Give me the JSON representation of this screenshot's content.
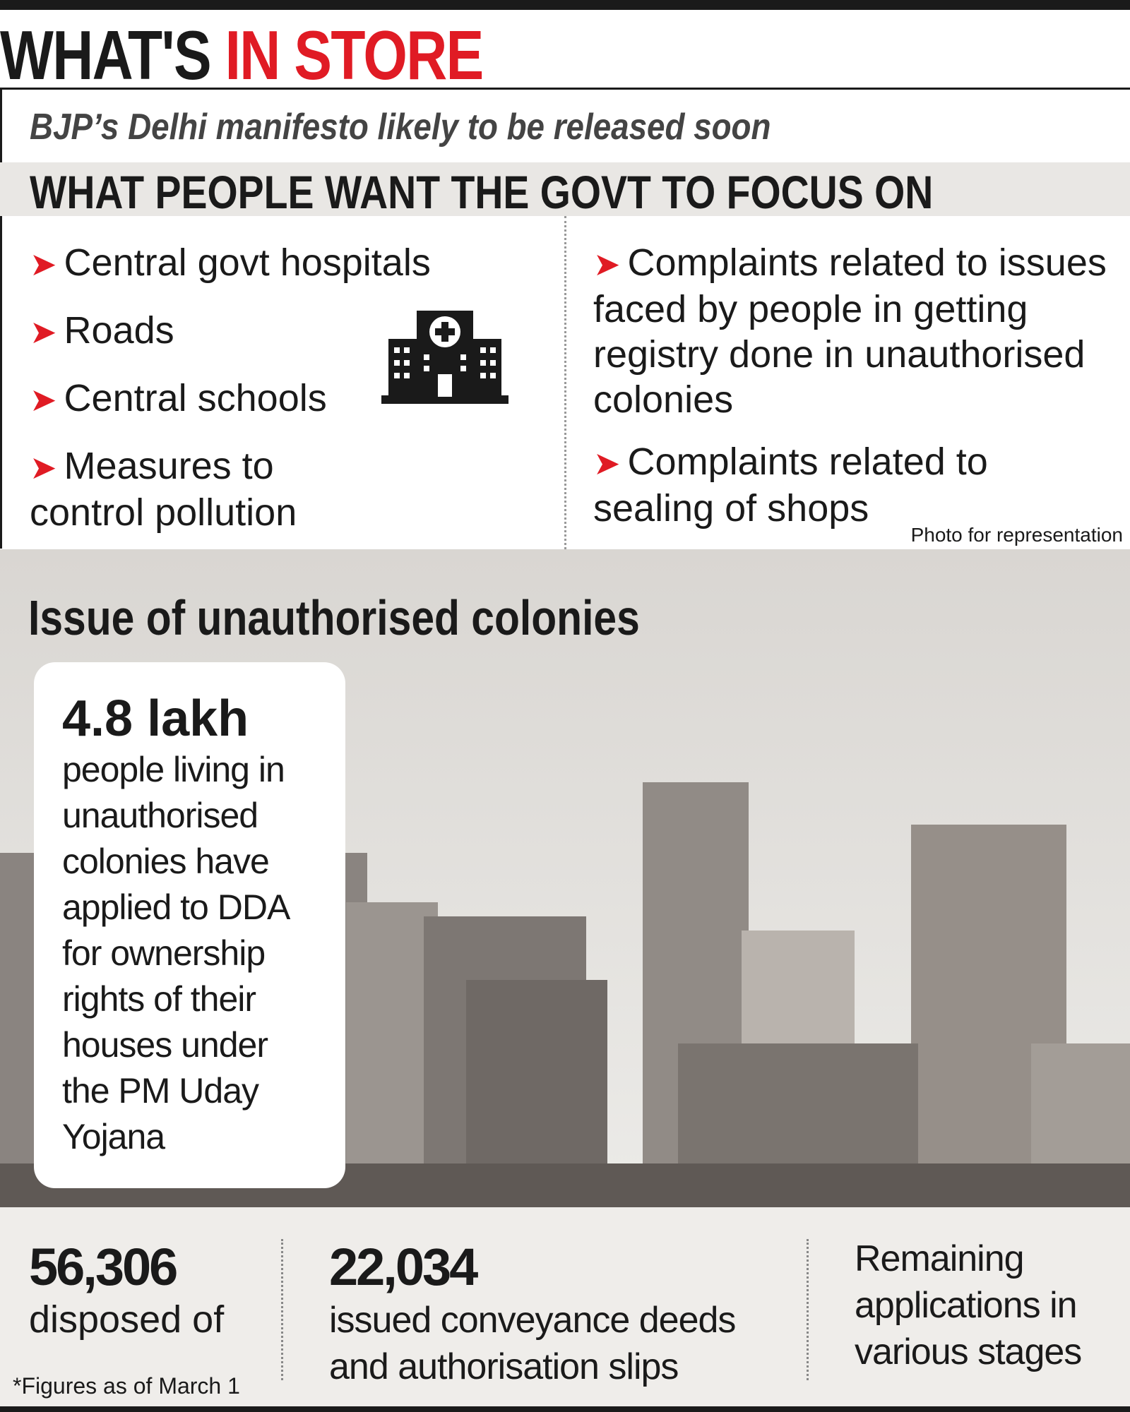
{
  "header": {
    "title_black": "WHAT'S",
    "title_red": "IN STORE",
    "subtitle": "BJP’s Delhi manifesto likely to be released soon"
  },
  "focus": {
    "heading": "WHAT PEOPLE WANT THE GOVT TO FOCUS ON",
    "left": [
      "Central govt hospitals",
      "Roads",
      "Central schools",
      "Measures to control pollution"
    ],
    "right": [
      "Complaints related to issues faced by people in getting registry done in unauthorised colonies",
      "Complaints related to sealing of shops"
    ],
    "photo_credit": "Photo for representation"
  },
  "section": {
    "heading": "Issue of unauthorised colonies",
    "callout": {
      "figure": "4.8 lakh",
      "text": "people living in unauthorised colonies have applied to DDA for ownership rights of their houses under the PM Uday Yojana"
    }
  },
  "stats": [
    {
      "figure": "56,306",
      "label": "disposed of"
    },
    {
      "figure": "22,034",
      "label": "issued conveyance deeds and authorisation slips"
    },
    {
      "label": "Remaining applications in various stages"
    }
  ],
  "footnote": "*Figures as of March 1"
}
